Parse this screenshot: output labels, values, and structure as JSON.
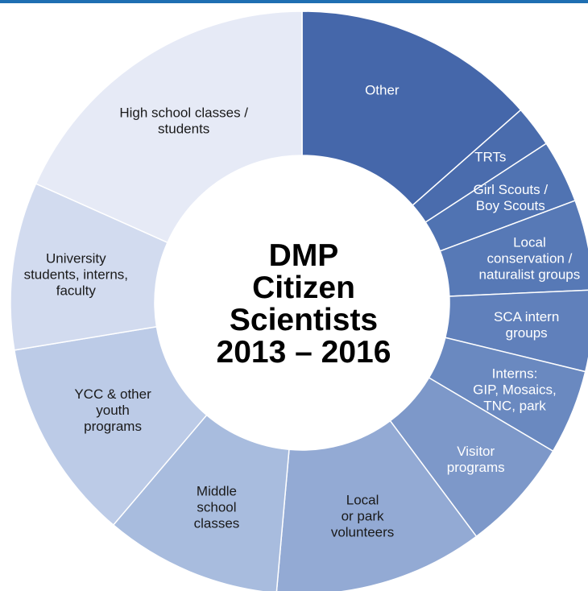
{
  "accent_color": "#1f6fb2",
  "chart_data": {
    "type": "pie",
    "donut": true,
    "center_title": [
      "DMP",
      "Citizen",
      "Scientists",
      "2013 – 2016"
    ],
    "slices": [
      {
        "label": "Other",
        "value": 13.5,
        "color": "#4567aa",
        "text_color": "#ffffff"
      },
      {
        "label": "TRTs",
        "value": 2.3,
        "color": "#4a6cad",
        "text_color": "#ffffff"
      },
      {
        "label": "Girl Scouts / Boy Scouts",
        "value": 3.5,
        "color": "#5073b2",
        "text_color": "#ffffff"
      },
      {
        "label": "Local conservation / naturalist groups",
        "value": 5.0,
        "color": "#5779b6",
        "text_color": "#ffffff"
      },
      {
        "label": "SCA intern groups",
        "value": 4.5,
        "color": "#6080bb",
        "text_color": "#ffffff"
      },
      {
        "label": "Interns: GIP, Mosaics, TNC, park",
        "value": 4.7,
        "color": "#6a89c0",
        "text_color": "#ffffff"
      },
      {
        "label": "Visitor programs",
        "value": 6.3,
        "color": "#7d98c9",
        "text_color": "#ffffff"
      },
      {
        "label": "Local or park volunteers",
        "value": 11.6,
        "color": "#93aad4",
        "text_color": "#1a1a1a"
      },
      {
        "label": "Middle school classes",
        "value": 9.8,
        "color": "#a8bcde",
        "text_color": "#1a1a1a"
      },
      {
        "label": "YCC & other youth programs",
        "value": 11.2,
        "color": "#bccbe7",
        "text_color": "#1a1a1a"
      },
      {
        "label": "University students, interns, faculty",
        "value": 9.3,
        "color": "#d2dbef",
        "text_color": "#1a1a1a"
      },
      {
        "label": "High school classes / students",
        "value": 18.3,
        "color": "#e6eaf6",
        "text_color": "#1a1a1a"
      }
    ]
  }
}
